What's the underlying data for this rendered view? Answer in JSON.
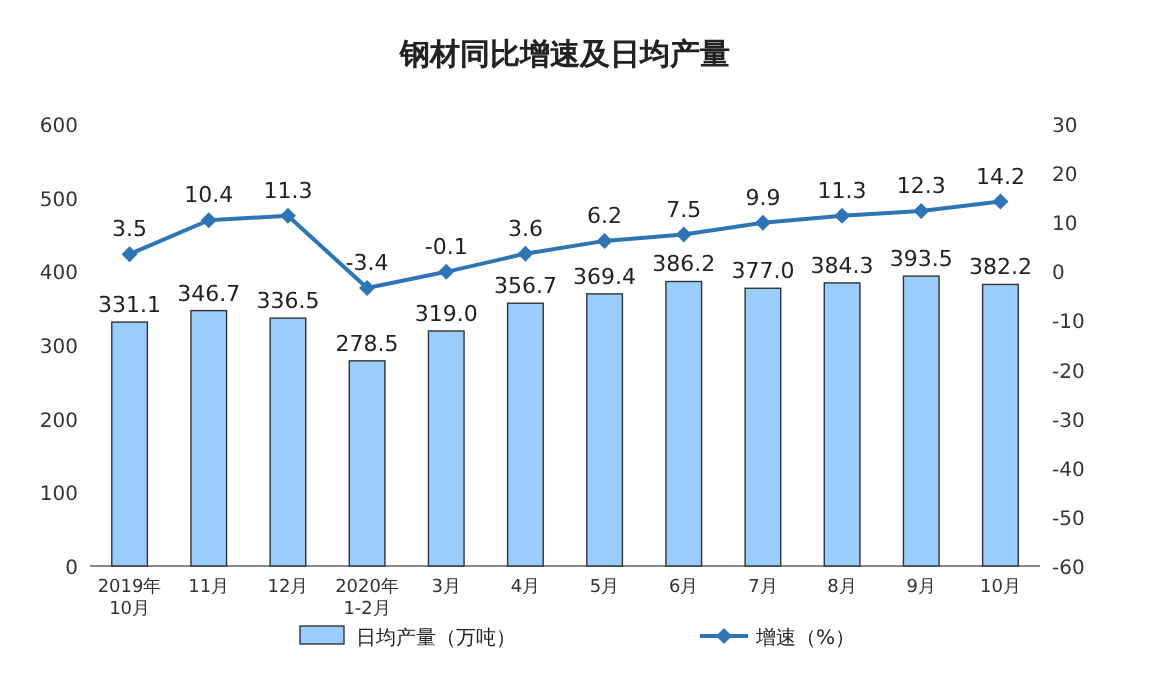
{
  "chart_data": {
    "type": "bar",
    "title": "钢材同比增速及日均产量",
    "categories": [
      "2019年\n10月",
      "11月",
      "12月",
      "2020年\n1-2月",
      "3月",
      "4月",
      "5月",
      "6月",
      "7月",
      "8月",
      "9月",
      "10月"
    ],
    "series": [
      {
        "name": "日均产量（万吨）",
        "color": "#99ccff",
        "values": [
          331.1,
          346.7,
          336.5,
          278.5,
          319.0,
          356.7,
          369.4,
          386.2,
          377.0,
          384.3,
          393.5,
          382.2
        ],
        "value_labels": [
          "331.1",
          "346.7",
          "336.5",
          "278.5",
          "319.0",
          "356.7",
          "369.4",
          "386.2",
          "377.0",
          "384.3",
          "393.5",
          "382.2"
        ]
      },
      {
        "name": "增速（%）",
        "type": "line",
        "axis": "y2",
        "color": "#2e75b6",
        "marker": "diamond",
        "values": [
          3.5,
          10.4,
          11.3,
          -3.4,
          -0.1,
          3.6,
          6.2,
          7.5,
          9.9,
          11.3,
          12.3,
          14.2
        ],
        "value_labels": [
          "3.5",
          "10.4",
          "11.3",
          "-3.4",
          "-0.1",
          "3.6",
          "6.2",
          "7.5",
          "9.9",
          "11.3",
          "12.3",
          "14.2"
        ]
      }
    ],
    "ylim": [
      0,
      600
    ],
    "yticks": [
      0,
      100,
      200,
      300,
      400,
      500,
      600
    ],
    "y2lim": [
      -60,
      30
    ],
    "y2ticks": [
      -60,
      -50,
      -40,
      -30,
      -20,
      -10,
      0,
      10,
      20,
      30
    ],
    "grid": false,
    "legend": "bottom"
  }
}
